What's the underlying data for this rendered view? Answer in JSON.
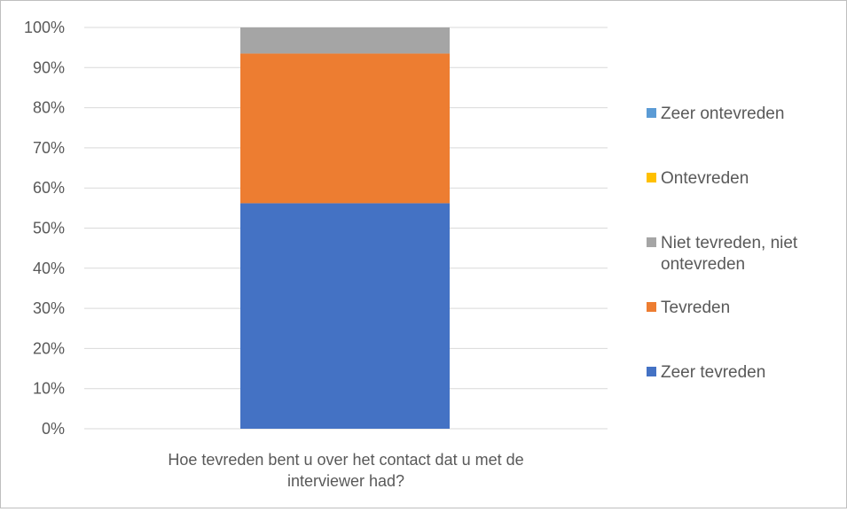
{
  "chart_data": {
    "type": "bar",
    "stacked": true,
    "percent_stacked": true,
    "categories": [
      "Hoe tevreden bent u over het contact dat u met de interviewer had?"
    ],
    "category_label_lines": [
      "Hoe tevreden bent u over het contact dat u met de",
      "interviewer had?"
    ],
    "series": [
      {
        "name": "Zeer tevreden",
        "values": [
          56.2
        ],
        "color": "#4472C4"
      },
      {
        "name": "Tevreden",
        "values": [
          37.3
        ],
        "color": "#ED7D31"
      },
      {
        "name": "Niet tevreden, niet ontevreden",
        "values": [
          6.5
        ],
        "color": "#A5A5A5"
      },
      {
        "name": "Ontevreden",
        "values": [
          0
        ],
        "color": "#FFC000"
      },
      {
        "name": "Zeer ontevreden",
        "values": [
          0
        ],
        "color": "#5B9BD5"
      }
    ],
    "legend_order": [
      "Zeer ontevreden",
      "Ontevreden",
      "Niet tevreden, niet ontevreden",
      "Tevreden",
      "Zeer tevreden"
    ],
    "legend_lines": {
      "Zeer ontevreden": [
        "Zeer ontevreden"
      ],
      "Ontevreden": [
        "Ontevreden"
      ],
      "Niet tevreden, niet ontevreden": [
        "Niet tevreden, niet",
        "ontevreden"
      ],
      "Tevreden": [
        "Tevreden"
      ],
      "Zeer tevreden": [
        "Zeer tevreden"
      ]
    },
    "y_ticks": [
      "0%",
      "10%",
      "20%",
      "30%",
      "40%",
      "50%",
      "60%",
      "70%",
      "80%",
      "90%",
      "100%"
    ],
    "ylim": [
      0,
      100
    ],
    "grid": true,
    "legend_position": "right",
    "title": "",
    "xlabel": "",
    "ylabel": "",
    "gridline_color": "#d9d9d9",
    "text_color": "#595959"
  }
}
